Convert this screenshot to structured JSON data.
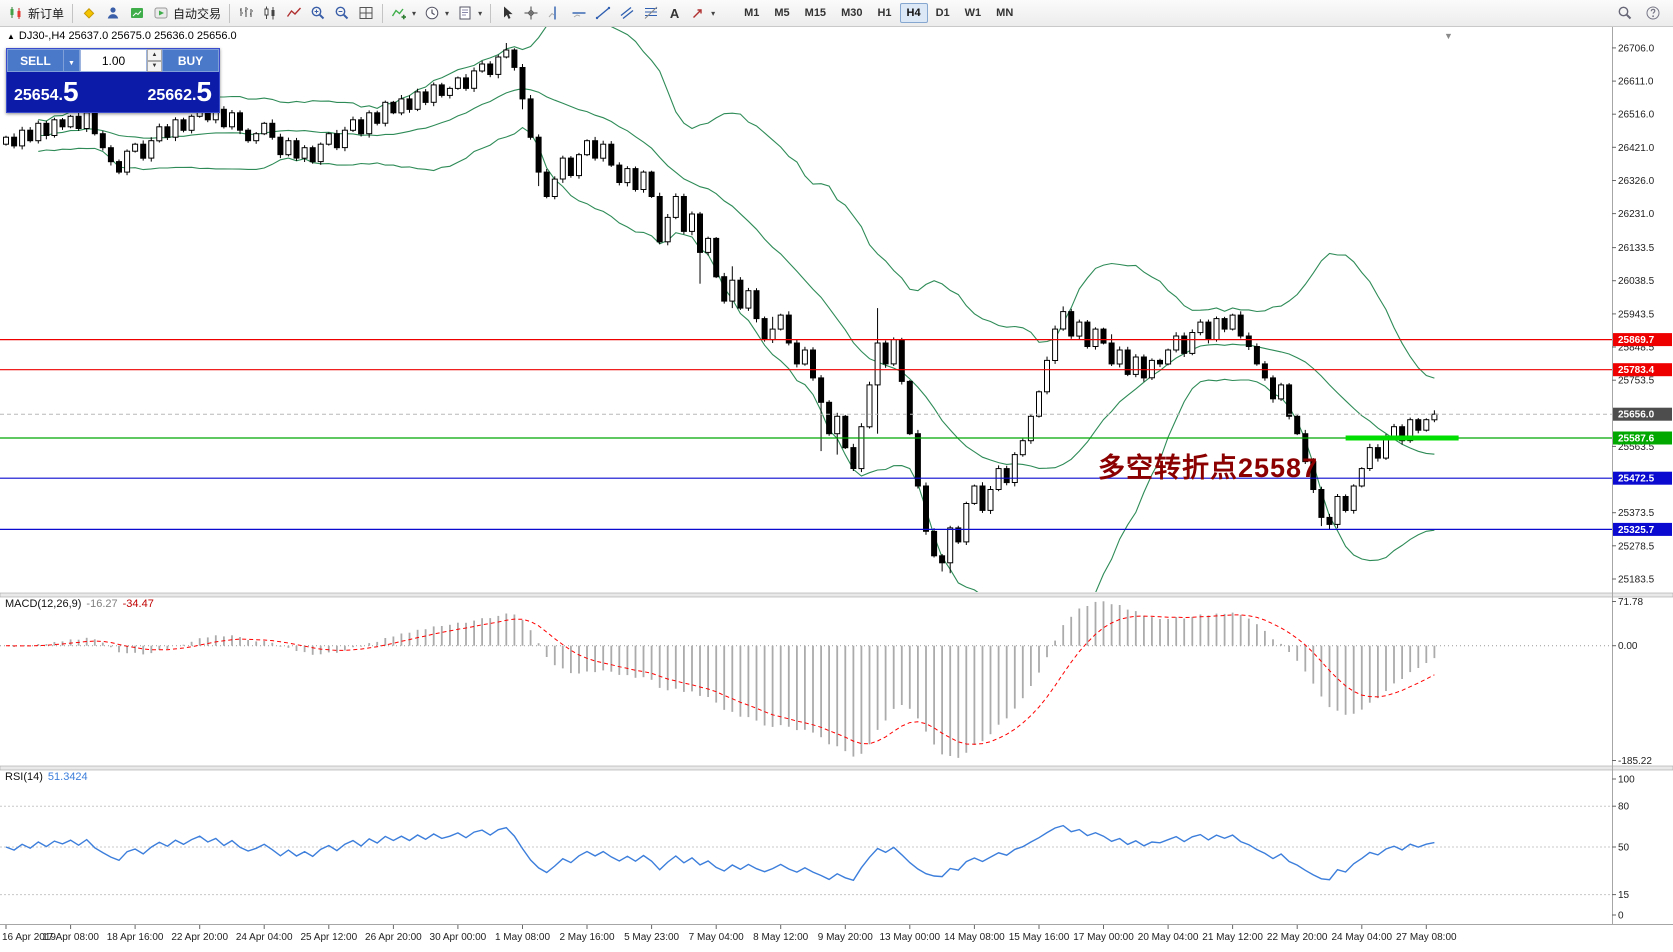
{
  "icons": {
    "caret_down": "▾",
    "spin_up": "▲",
    "spin_down": "▼",
    "dd_caret": "▼",
    "collapse_arrow": "▲",
    "scroll_marker": "▼"
  },
  "toolbar": {
    "new_order": "新订单",
    "autotrading": "自动交易",
    "text_tool": "A",
    "timeframes": [
      "M1",
      "M5",
      "M15",
      "M30",
      "H1",
      "H4",
      "D1",
      "W1",
      "MN"
    ],
    "active_timeframe": "H4"
  },
  "chart": {
    "ohlc_header": "DJ30-,H4  25637.0 25675.0 25636.0 25656.0",
    "annotation": {
      "text": "多空转折点25587",
      "color": "#8B0000"
    },
    "one_click": {
      "sell_label": "SELL",
      "buy_label": "BUY",
      "volume": "1.00",
      "sell_price": "25654.",
      "sell_price_big": "5",
      "buy_price": "25662.",
      "buy_price_big": "5"
    }
  },
  "chart_data": {
    "type": "candlestick",
    "symbol": "DJ30-",
    "timeframe": "H4",
    "current_ohlc": {
      "open": 25637.0,
      "high": 25675.0,
      "low": 25636.0,
      "close": 25656.0
    },
    "price_axis": {
      "visible_max": 26766,
      "visible_min": 25149,
      "ticks": [
        26706.0,
        26611.0,
        26516.0,
        26421.0,
        26326.0,
        26231.0,
        26133.5,
        26038.5,
        25943.5,
        25848.5,
        25753.5,
        25563.5,
        25373.5,
        25278.5,
        25183.5
      ]
    },
    "candles": {
      "first_open": 26430,
      "closes": [
        26450,
        26425,
        26470,
        26440,
        26490,
        26455,
        26500,
        26480,
        26510,
        26475,
        26520,
        26460,
        26420,
        26380,
        26350,
        26410,
        26430,
        26390,
        26440,
        26480,
        26450,
        26500,
        26470,
        26510,
        26540,
        26500,
        26530,
        26480,
        26520,
        26470,
        26440,
        26460,
        26490,
        26450,
        26400,
        26440,
        26390,
        26420,
        26380,
        26430,
        26460,
        26420,
        26470,
        26500,
        26460,
        26520,
        26490,
        26550,
        26520,
        26560,
        26530,
        26580,
        26550,
        26600,
        26570,
        26590,
        26620,
        26590,
        26640,
        26660,
        26630,
        26680,
        26700,
        26650,
        26560,
        26450,
        26350,
        26280,
        26330,
        26390,
        26340,
        26400,
        26440,
        26390,
        26430,
        26370,
        26320,
        26360,
        26300,
        26350,
        26280,
        26150,
        26220,
        26280,
        26180,
        26230,
        26120,
        26160,
        26050,
        25980,
        26040,
        25960,
        26010,
        25930,
        25870,
        25900,
        25940,
        25860,
        25800,
        25840,
        25760,
        25690,
        25600,
        25650,
        25560,
        25500,
        25620,
        25740,
        25860,
        25800,
        25870,
        25750,
        25600,
        25450,
        25320,
        25250,
        25230,
        25330,
        25290,
        25400,
        25450,
        25380,
        25440,
        25500,
        25460,
        25540,
        25580,
        25650,
        25720,
        25810,
        25900,
        25950,
        25880,
        25920,
        25850,
        25900,
        25860,
        25800,
        25840,
        25770,
        25820,
        25760,
        25810,
        25800,
        25840,
        25880,
        25830,
        25890,
        25920,
        25870,
        25930,
        25900,
        25940,
        25880,
        25850,
        25800,
        25760,
        25700,
        25740,
        25650,
        25600,
        25520,
        25440,
        25360,
        25340,
        25420,
        25380,
        25450,
        25500,
        25560,
        25530,
        25590,
        25620,
        25580,
        25640,
        25610,
        25640,
        25656
      ],
      "wick_overrides": {
        "62": [
          20,
          4
        ],
        "64": [
          10,
          30
        ],
        "66": [
          8,
          40
        ],
        "86": [
          6,
          90
        ],
        "90": [
          40,
          20
        ],
        "95": [
          35,
          10
        ],
        "101": [
          8,
          140
        ],
        "103": [
          10,
          60
        ],
        "108": [
          100,
          140
        ],
        "116": [
          5,
          25
        ],
        "117": [
          6,
          30
        ],
        "131": [
          15,
          5
        ],
        "137": [
          25,
          6
        ],
        "163": [
          8,
          25
        ],
        "164": [
          10,
          15
        ]
      }
    },
    "bollinger": {
      "period": 20,
      "deviation": 2,
      "color": "#2E8B57"
    },
    "hlines": [
      {
        "price": 25869.7,
        "label": "25869.7",
        "color": "#EE0000",
        "type": "resistance"
      },
      {
        "price": 25783.4,
        "label": "25783.4",
        "color": "#EE0000",
        "type": "resistance"
      },
      {
        "price": 25656.0,
        "label": "25656.0",
        "color": "#B8B8B8",
        "tag_color": "#4D4D4D",
        "type": "current-price"
      },
      {
        "price": 25587.6,
        "label": "25587.6",
        "color": "#00A800",
        "type": "support",
        "thick_segment_bars": [
          166,
          180
        ],
        "thick_color": "#00DD00"
      },
      {
        "price": 25472.5,
        "label": "25472.5",
        "color": "#0A0AD0",
        "type": "support"
      },
      {
        "price": 25325.7,
        "label": "25325.7",
        "color": "#0A0AD0",
        "type": "support"
      }
    ],
    "time_axis": [
      "16 Apr 2019",
      "17 Apr 08:00",
      "18 Apr 16:00",
      "22 Apr 20:00",
      "24 Apr 04:00",
      "25 Apr 12:00",
      "26 Apr 20:00",
      "30 Apr 00:00",
      "1 May 08:00",
      "2 May 16:00",
      "5 May 23:00",
      "7 May 04:00",
      "8 May 12:00",
      "9 May 20:00",
      "13 May 00:00",
      "14 May 08:00",
      "15 May 16:00",
      "17 May 00:00",
      "20 May 04:00",
      "21 May 12:00",
      "22 May 20:00",
      "24 May 04:00",
      "27 May 08:00"
    ],
    "bars_per_label": 8,
    "macd": {
      "name": "MACD(12,26,9)",
      "value": "-16.27",
      "signal": "-34.47",
      "params": [
        12,
        26,
        9
      ],
      "axis_labels": [
        "71.78",
        "0.00",
        "-185.22"
      ],
      "range": [
        71.78,
        -185.22
      ],
      "histogram_color": "#ABABAB",
      "signal_color": "#FF0000"
    },
    "rsi": {
      "name": "RSI(14)",
      "value": "51.3424",
      "period": 14,
      "axis_labels": [
        "100",
        "80",
        "50",
        "15",
        "0"
      ],
      "levels": [
        80,
        50,
        15
      ],
      "range": [
        0,
        100
      ],
      "line_color": "#3C7EDB"
    }
  }
}
